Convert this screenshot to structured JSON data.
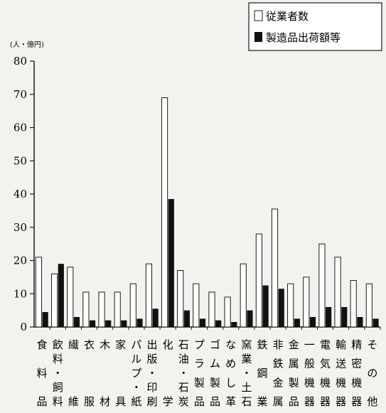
{
  "chart_data": {
    "type": "bar",
    "unit_label": "(人・億円)",
    "ylim": [
      0,
      80
    ],
    "yticks": [
      0,
      10,
      20,
      30,
      40,
      50,
      60,
      70,
      80
    ],
    "grid": false,
    "legend_position": "top-right",
    "categories": [
      "食料品",
      "飲料・飼料",
      "繊維",
      "衣服",
      "木材",
      "家具",
      "パルプ・紙",
      "出版・印刷",
      "化学",
      "石油・石炭",
      "プラ製品",
      "ゴム製品",
      "なめし革",
      "窯業・土石",
      "鉄鋼業",
      "非鉄金属",
      "金属製品",
      "一般機器",
      "電気機器",
      "輸送機器",
      "精密機器",
      "その他"
    ],
    "series": [
      {
        "name": "従業者数",
        "fill": "#ffffff",
        "values": [
          21,
          16,
          18,
          10.5,
          10.5,
          10.5,
          13,
          19,
          69,
          17,
          13,
          10.5,
          9,
          19,
          28,
          35.5,
          13,
          15,
          25,
          21,
          14,
          13
        ]
      },
      {
        "name": "製造品出荷額等",
        "fill": "#111111",
        "values": [
          4.5,
          19,
          3,
          2,
          2,
          2,
          2.5,
          5.5,
          38.5,
          5,
          2.5,
          2,
          1.5,
          5,
          12.5,
          11.5,
          2.5,
          3,
          6,
          6,
          3,
          2.5
        ]
      }
    ]
  }
}
